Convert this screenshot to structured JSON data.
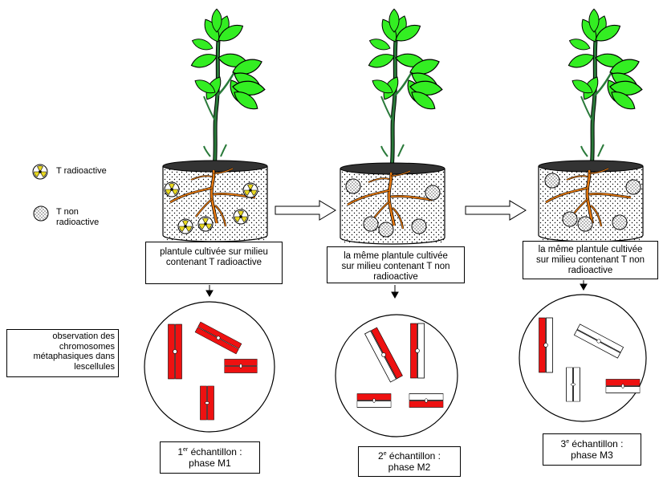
{
  "legend": {
    "radio": {
      "label": "T radioactive",
      "icon": "radioactive-icon"
    },
    "nonradio": {
      "line1": "T non",
      "line2": "radioactive",
      "icon": "dotted-circle-icon"
    }
  },
  "observation_box": {
    "line1": "observation des",
    "line2": "chromosomes",
    "line3": "métaphasiques dans",
    "line4": "lescellules"
  },
  "stages": [
    {
      "culture_line1": "plantule cultivée sur milieu",
      "culture_line2": "contenant T  radioactive",
      "sample_prefix": "1",
      "sample_sup": "er",
      "sample_suffix": " échantillon :",
      "phase": "phase M1"
    },
    {
      "culture_line1": "la même plantule cultivée",
      "culture_line2": "sur milieu contenant T   non",
      "culture_line3": "radioactive",
      "sample_prefix": "2",
      "sample_sup": "e",
      "sample_suffix": " échantillon :",
      "phase": "phase M2"
    },
    {
      "culture_line1": "la même plantule cultivée",
      "culture_line2": "sur milieu contenant T  non",
      "culture_line3": "radioactive",
      "sample_prefix": "3",
      "sample_sup": "e",
      "sample_suffix": " échantillon :",
      "phase": "phase M3"
    }
  ],
  "colors": {
    "leaf": "#33ee22",
    "stem": "#2a7a3a",
    "root": "#e87a10",
    "radioactive_chromatid": "#ee1111",
    "pot_top": "#333333"
  }
}
